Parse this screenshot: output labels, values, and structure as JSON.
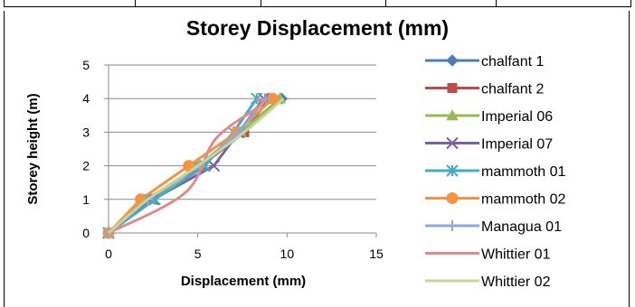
{
  "chart_data": {
    "type": "line",
    "title": "Storey Displacement (mm)",
    "xlabel": "Displacement (mm)",
    "ylabel": "Storey height (m)",
    "xlim": [
      0,
      15
    ],
    "ylim": [
      0,
      5
    ],
    "x_ticks": [
      "0",
      "5",
      "10",
      "15"
    ],
    "y_ticks": [
      "0",
      "1",
      "2",
      "3",
      "4",
      "5"
    ],
    "grid": "horizontal",
    "legend_position": "right",
    "series": [
      {
        "name": "chalfant 1",
        "color": "#4a7ebb",
        "marker": "diamond",
        "smooth": false,
        "x": [
          0,
          2.3,
          5.0,
          7.5,
          9.7
        ],
        "y": [
          0,
          1,
          2,
          3,
          4
        ]
      },
      {
        "name": "chalfant 2",
        "color": "#be4b48",
        "marker": "square",
        "smooth": false,
        "x": [
          0,
          2.1,
          5.2,
          7.6,
          9.0
        ],
        "y": [
          0,
          1,
          2,
          3,
          4
        ]
      },
      {
        "name": "Imperial 06",
        "color": "#98b954",
        "marker": "triangle",
        "smooth": false,
        "x": [
          0,
          2.4,
          5.0,
          7.4,
          9.6
        ],
        "y": [
          0,
          1,
          2,
          3,
          4
        ]
      },
      {
        "name": "Imperial 07",
        "color": "#7d60a0",
        "marker": "x",
        "smooth": false,
        "x": [
          0,
          2.5,
          5.9,
          7.3,
          8.7
        ],
        "y": [
          0,
          1,
          2,
          3,
          4
        ]
      },
      {
        "name": "mammoth  01",
        "color": "#46aac5",
        "marker": "asterisk",
        "smooth": false,
        "x": [
          0,
          2.6,
          5.4,
          7.0,
          8.3
        ],
        "y": [
          0,
          1,
          2,
          3,
          4
        ]
      },
      {
        "name": "mammoth  02",
        "color": "#f69240",
        "marker": "circle",
        "smooth": false,
        "x": [
          0,
          1.8,
          4.5,
          7.2,
          9.2
        ],
        "y": [
          0,
          1,
          2,
          3,
          4
        ]
      },
      {
        "name": "Managua 01",
        "color": "#8eaad6",
        "marker": "plus",
        "smooth": false,
        "x": [
          0,
          2.2,
          5.1,
          7.3,
          8.8
        ],
        "y": [
          0,
          1,
          2,
          3,
          4
        ]
      },
      {
        "name": "Whittier 01",
        "color": "#dc8c8c",
        "marker": "none",
        "smooth": true,
        "x": [
          0,
          4.3,
          6.0,
          8.5,
          8.3
        ],
        "y": [
          0,
          1.2,
          2.8,
          3.8,
          4
        ]
      },
      {
        "name": "Whittier 02",
        "color": "#c3d69b",
        "marker": "none",
        "smooth": true,
        "x": [
          0,
          2.2,
          5.0,
          7.6,
          9.8
        ],
        "y": [
          0,
          1,
          2,
          3,
          4
        ]
      }
    ]
  }
}
